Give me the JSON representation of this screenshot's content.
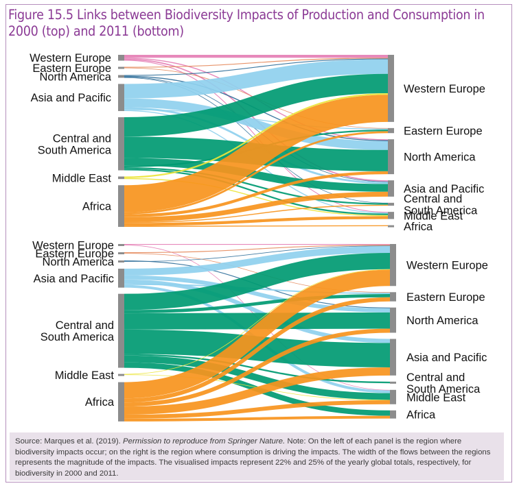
{
  "figure": {
    "title": "Figure 15.5 Links between Biodiversity Impacts of Production and Consumption in 2000 (top) and 2011 (bottom)"
  },
  "caption": {
    "source": "Source: Marques et al. (2019). ",
    "permission": "Permission to reproduce from Springer Nature.",
    "note": " Note: On the left of each panel is the region where biodiversity impacts occur; on the right is the region where consumption is driving the impacts. The width of the flows between the regions represents the magnitude of the impacts. The visualised impacts represent 22% and 25% of the yearly global totals, respectively, for biodiversity in 2000 and 2011."
  },
  "colors": {
    "Western Europe": "#e57fb5",
    "Eastern Europe": "#e58a5c",
    "North America": "#2f6f9a",
    "Asia and Pacific": "#8fd0ee",
    "Central and South America": "#009a72",
    "Middle East": "#ece53b",
    "Africa": "#f7941d",
    "node": "#8c8c8c"
  },
  "chart_data": [
    {
      "type": "sankey",
      "year": "2000",
      "position": "top",
      "sources": [
        "Western Europe",
        "Eastern Europe",
        "North America",
        "Asia and Pacific",
        "Central and South America",
        "Middle East",
        "Africa"
      ],
      "source_labels": [
        "Western Europe",
        "Eastern Europe",
        "North America",
        "Asia and Pacific",
        "Central and\nSouth America",
        "Middle East",
        "Africa"
      ],
      "targets": [
        "Western Europe",
        "Eastern Europe",
        "North America",
        "Asia and Pacific",
        "Central and South America",
        "Middle East",
        "Africa"
      ],
      "target_labels": [
        "Western Europe",
        "Eastern Europe",
        "North America",
        "Asia and Pacific",
        "Central and\nSouth America",
        "Middle East",
        "Africa"
      ],
      "flows": [
        [
          "Western Europe",
          "Western Europe",
          1.5
        ],
        [
          "Western Europe",
          "North America",
          0.5
        ],
        [
          "Western Europe",
          "Asia and Pacific",
          0.6
        ],
        [
          "Western Europe",
          "Middle East",
          0.4
        ],
        [
          "Eastern Europe",
          "Western Europe",
          0.4
        ],
        [
          "Eastern Europe",
          "Eastern Europe",
          0.3
        ],
        [
          "North America",
          "Western Europe",
          0.4
        ],
        [
          "North America",
          "North America",
          0.5
        ],
        [
          "North America",
          "Asia and Pacific",
          0.3
        ],
        [
          "North America",
          "Central and South America",
          0.2
        ],
        [
          "Asia and Pacific",
          "Western Europe",
          7.5
        ],
        [
          "Asia and Pacific",
          "North America",
          4.5
        ],
        [
          "Asia and Pacific",
          "Asia and Pacific",
          1.0
        ],
        [
          "Asia and Pacific",
          "Eastern Europe",
          0.5
        ],
        [
          "Asia and Pacific",
          "Middle East",
          0.5
        ],
        [
          "Central and South America",
          "Western Europe",
          10.0
        ],
        [
          "Central and South America",
          "North America",
          11.0
        ],
        [
          "Central and South America",
          "Asia and Pacific",
          4.0
        ],
        [
          "Central and South America",
          "Eastern Europe",
          0.8
        ],
        [
          "Central and South America",
          "Central and South America",
          0.8
        ],
        [
          "Central and South America",
          "Middle East",
          0.8
        ],
        [
          "Middle East",
          "Western Europe",
          0.8
        ],
        [
          "Middle East",
          "Middle East",
          0.5
        ],
        [
          "Africa",
          "Western Europe",
          14.0
        ],
        [
          "Africa",
          "Eastern Europe",
          1.0
        ],
        [
          "Africa",
          "North America",
          1.5
        ],
        [
          "Africa",
          "Asia and Pacific",
          2.5
        ],
        [
          "Africa",
          "Central and South America",
          0.5
        ],
        [
          "Africa",
          "Middle East",
          1.5
        ],
        [
          "Africa",
          "Africa",
          0.5
        ]
      ]
    },
    {
      "type": "sankey",
      "year": "2011",
      "position": "bottom",
      "sources": [
        "Western Europe",
        "Eastern Europe",
        "North America",
        "Asia and Pacific",
        "Central and South America",
        "Middle East",
        "Africa"
      ],
      "source_labels": [
        "Western Europe",
        "Eastern Europe",
        "North America",
        "Asia and Pacific",
        "Central and\nSouth America",
        "Middle East",
        "Africa"
      ],
      "targets": [
        "Western Europe",
        "Eastern Europe",
        "North America",
        "Asia and Pacific",
        "Central and South America",
        "Middle East",
        "Africa"
      ],
      "target_labels": [
        "Western Europe",
        "Eastern Europe",
        "North America",
        "Asia and Pacific",
        "Central and\nSouth America",
        "Middle East",
        "Africa"
      ],
      "flows": [
        [
          "Western Europe",
          "Western Europe",
          0.3
        ],
        [
          "Western Europe",
          "Middle East",
          0.2
        ],
        [
          "Eastern Europe",
          "Western Europe",
          0.3
        ],
        [
          "Eastern Europe",
          "Eastern Europe",
          0.2
        ],
        [
          "North America",
          "North America",
          0.3
        ],
        [
          "North America",
          "Western Europe",
          0.2
        ],
        [
          "Asia and Pacific",
          "Western Europe",
          2.5
        ],
        [
          "Asia and Pacific",
          "North America",
          1.5
        ],
        [
          "Asia and Pacific",
          "Asia and Pacific",
          1.5
        ],
        [
          "Asia and Pacific",
          "Eastern Europe",
          0.5
        ],
        [
          "Asia and Pacific",
          "Middle East",
          1.0
        ],
        [
          "Central and South America",
          "Western Europe",
          6.0
        ],
        [
          "Central and South America",
          "Eastern Europe",
          1.2
        ],
        [
          "Central and South America",
          "North America",
          6.0
        ],
        [
          "Central and South America",
          "Asia and Pacific",
          9.0
        ],
        [
          "Central and South America",
          "Central and South America",
          0.6
        ],
        [
          "Central and South America",
          "Middle East",
          2.5
        ],
        [
          "Central and South America",
          "Africa",
          2.0
        ],
        [
          "Middle East",
          "Western Europe",
          0.2
        ],
        [
          "Middle East",
          "Middle East",
          0.1
        ],
        [
          "Africa",
          "Western Europe",
          6.0
        ],
        [
          "Africa",
          "Eastern Europe",
          1.5
        ],
        [
          "Africa",
          "North America",
          1.5
        ],
        [
          "Africa",
          "Asia and Pacific",
          3.0
        ],
        [
          "Africa",
          "Middle East",
          1.5
        ],
        [
          "Africa",
          "Africa",
          1.0
        ]
      ]
    }
  ]
}
